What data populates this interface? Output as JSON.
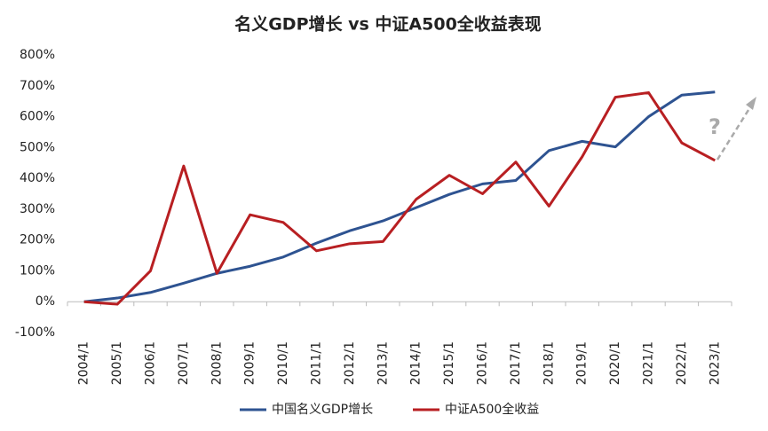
{
  "chart_data": {
    "type": "line",
    "title": "名义GDP增长 vs 中证A500全收益表现",
    "categories": [
      "2004/1",
      "2005/1",
      "2006/1",
      "2007/1",
      "2008/1",
      "2009/1",
      "2010/1",
      "2011/1",
      "2012/1",
      "2013/1",
      "2014/1",
      "2015/1",
      "2016/1",
      "2017/1",
      "2018/1",
      "2019/1",
      "2020/1",
      "2021/1",
      "2022/1",
      "2023/1"
    ],
    "series": [
      {
        "name": "中国名义GDP增长",
        "color": "#2e5391",
        "values": [
          0,
          12,
          30,
          60,
          92,
          115,
          145,
          190,
          230,
          262,
          305,
          348,
          382,
          393,
          490,
          520,
          502,
          600,
          670,
          680
        ]
      },
      {
        "name": "中证A500全收益",
        "color": "#b81f22",
        "values": [
          0,
          -8,
          100,
          440,
          92,
          282,
          257,
          165,
          188,
          195,
          332,
          410,
          350,
          453,
          310,
          470,
          663,
          678,
          515,
          458
        ]
      }
    ],
    "ylim": [
      -100,
      800
    ],
    "yticks": [
      {
        "value": -100,
        "label": "-100%"
      },
      {
        "value": 0,
        "label": "0%"
      },
      {
        "value": 100,
        "label": "100%"
      },
      {
        "value": 200,
        "label": "200%"
      },
      {
        "value": 300,
        "label": "300%"
      },
      {
        "value": 400,
        "label": "400%"
      },
      {
        "value": 500,
        "label": "500%"
      },
      {
        "value": 600,
        "label": "600%"
      },
      {
        "value": 700,
        "label": "700%"
      },
      {
        "value": 800,
        "label": "800%"
      }
    ],
    "annotation": "?",
    "legend": "bottom"
  }
}
